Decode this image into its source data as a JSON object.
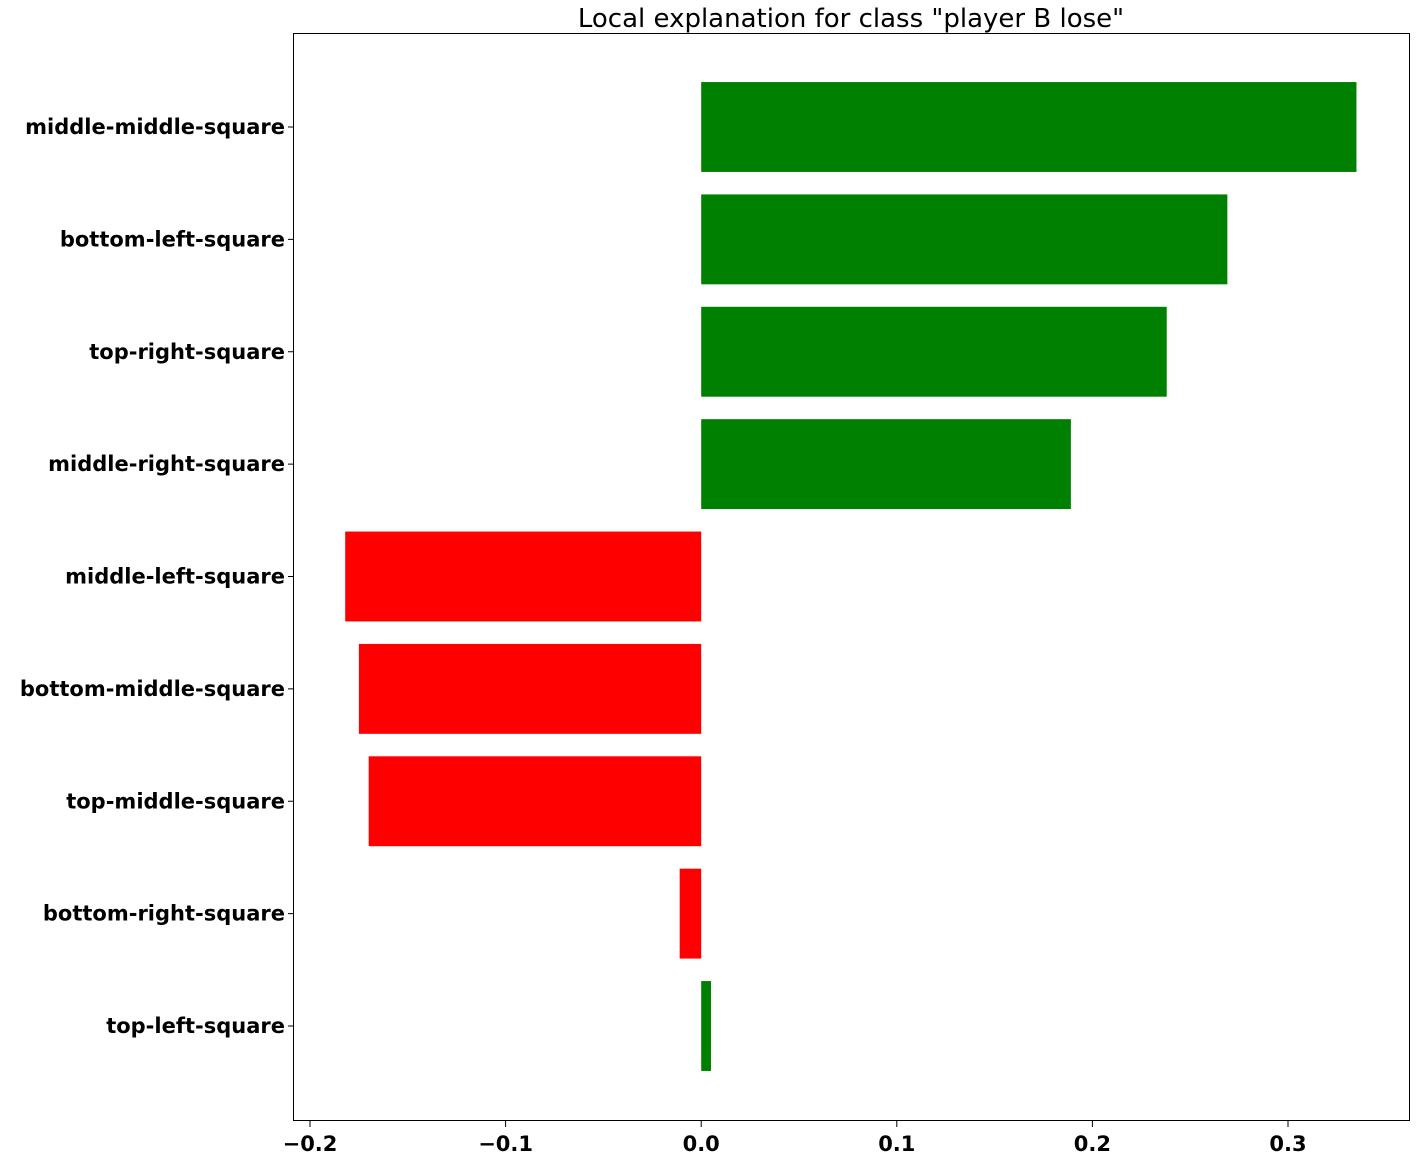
{
  "chart_data": {
    "type": "bar",
    "orientation": "horizontal",
    "title": "Local explanation for class \"player B lose\"",
    "xlabel": "",
    "ylabel": "",
    "xlim": [
      -0.2,
      0.36
    ],
    "xticks": [
      -0.2,
      -0.1,
      0.0,
      0.1,
      0.2,
      0.3
    ],
    "xtick_labels": [
      "−0.2",
      "−0.1",
      "0.0",
      "0.1",
      "0.2",
      "0.3"
    ],
    "categories": [
      "middle-middle-square",
      "bottom-left-square",
      "top-right-square",
      "middle-right-square",
      "middle-left-square",
      "bottom-middle-square",
      "top-middle-square",
      "bottom-right-square",
      "top-left-square"
    ],
    "values": [
      0.335,
      0.269,
      0.238,
      0.189,
      -0.182,
      -0.175,
      -0.17,
      -0.011,
      0.005
    ],
    "colors": {
      "positive": "#008000",
      "negative": "#ff0000"
    },
    "grid": false,
    "legend": "none"
  }
}
